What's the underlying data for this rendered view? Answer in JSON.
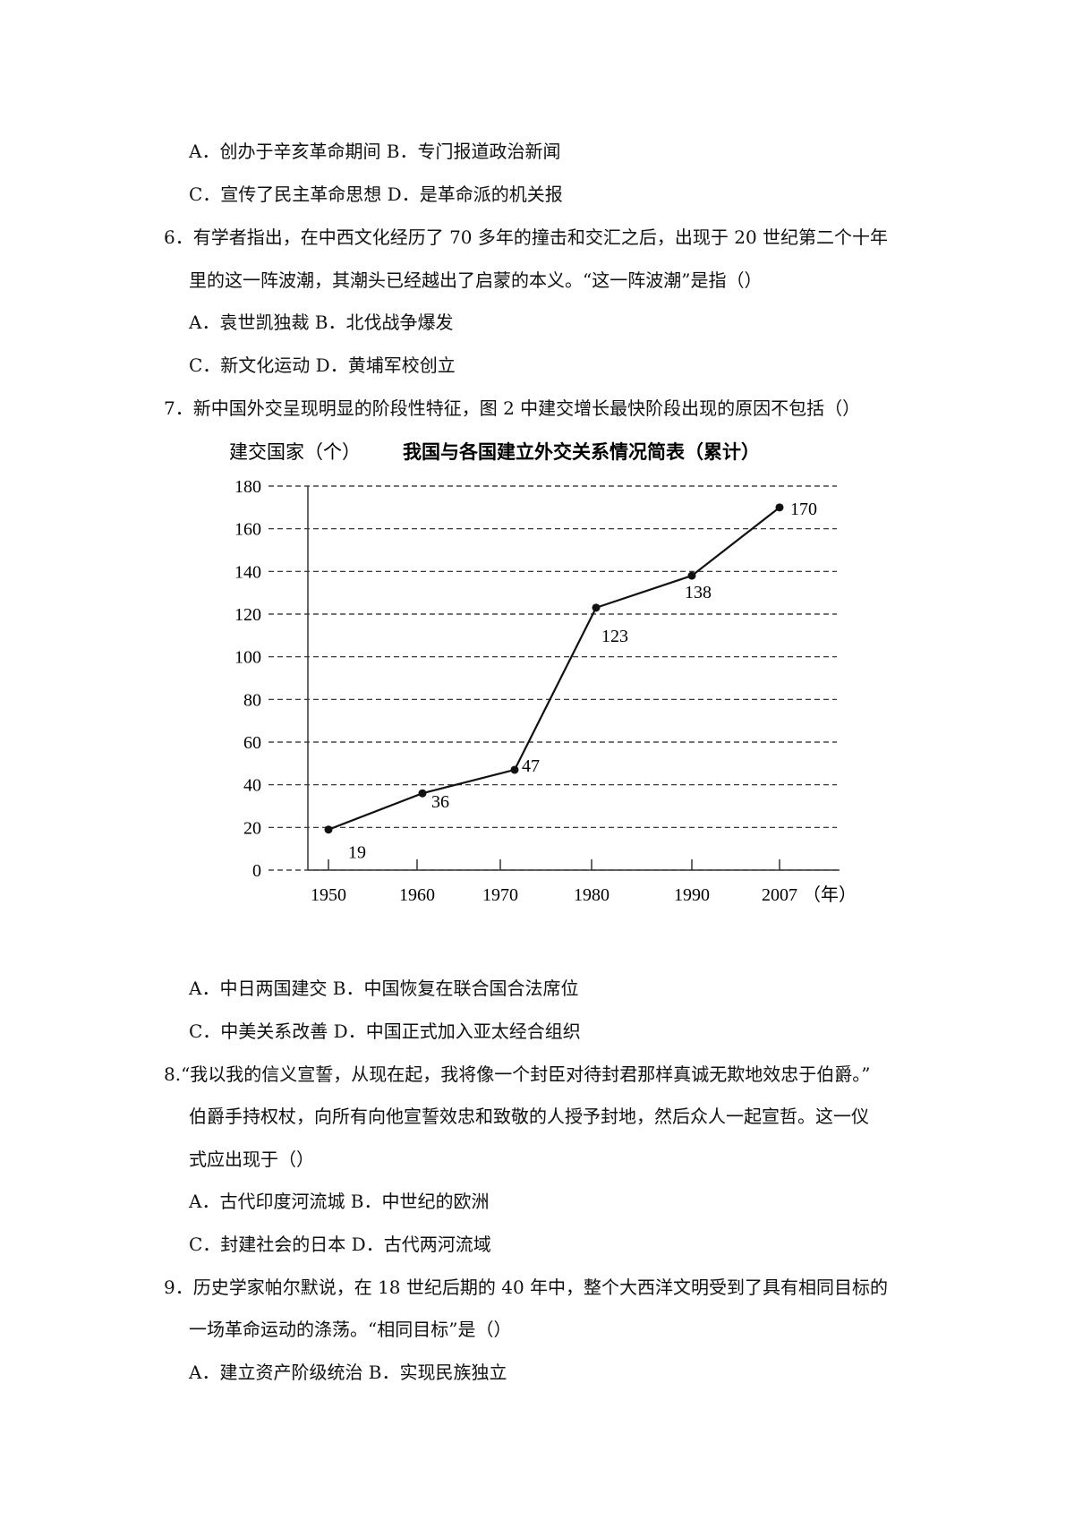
{
  "lines": [
    {
      "cls": "o",
      "text": "A．创办于辛亥革命期间 B．专门报道政治新闻"
    },
    {
      "cls": "o",
      "text": "C．宣传了民主革命思想 D．是革命派的机关报"
    },
    {
      "cls": "q",
      "text": "6．有学者指出，在中西文化经历了 70 多年的撞击和交汇之后，出现于 20 世纪第二个十年"
    },
    {
      "cls": "o",
      "text": "里的这一阵波潮，其潮头已经越出了启蒙的本义。“这一阵波潮”是指（）"
    },
    {
      "cls": "o",
      "text": "A．袁世凯独裁 B．北伐战争爆发"
    },
    {
      "cls": "o",
      "text": "C．新文化运动 D．黄埔军校创立"
    },
    {
      "cls": "q",
      "text": "7．新中国外交呈现明显的阶段性特征，图 2 中建交增长最快阶段出现的原因不包括（）"
    }
  ],
  "lines2": [
    {
      "cls": "o",
      "text": "A．中日两国建交 B．中国恢复在联合国合法席位"
    },
    {
      "cls": "o",
      "text": "C．中美关系改善 D．中国正式加入亚太经合组织"
    },
    {
      "cls": "q",
      "text": "8.“我以我的信义宣誓，从现在起，我将像一个封臣对待封君那样真诚无欺地效忠于伯爵。”"
    },
    {
      "cls": "o",
      "text": "伯爵手持权杖，向所有向他宣誓效忠和致敬的人授予封地，然后众人一起宣哲。这一仪"
    },
    {
      "cls": "o",
      "text": "式应出现于（）"
    },
    {
      "cls": "o",
      "text": "A．古代印度河流城 B．中世纪的欧洲"
    },
    {
      "cls": "o",
      "text": "C．封建社会的日本 D．古代两河流域"
    },
    {
      "cls": "q",
      "text": "9．历史学家帕尔默说，在 18 世纪后期的 40 年中，整个大西洋文明受到了具有相同目标的"
    },
    {
      "cls": "o",
      "text": "一场革命运动的涤荡。“相同目标”是（）"
    },
    {
      "cls": "o",
      "text": "A．建立资产阶级统治 B．实现民族独立"
    }
  ],
  "chart_data": {
    "type": "line",
    "title": "我国与各国建立外交关系情况简表（累计）",
    "ylabel": "建交国家（个）",
    "xlabel": "（年）",
    "caption": "图2",
    "categories": [
      "1950",
      "1960",
      "1970",
      "1980",
      "1990",
      "2007"
    ],
    "values": [
      19,
      36,
      47,
      123,
      138,
      170
    ],
    "yticks": [
      0,
      20,
      40,
      60,
      80,
      100,
      120,
      140,
      160,
      180
    ],
    "ylim": [
      0,
      180
    ],
    "grid": true,
    "grid_style": "dashed"
  }
}
